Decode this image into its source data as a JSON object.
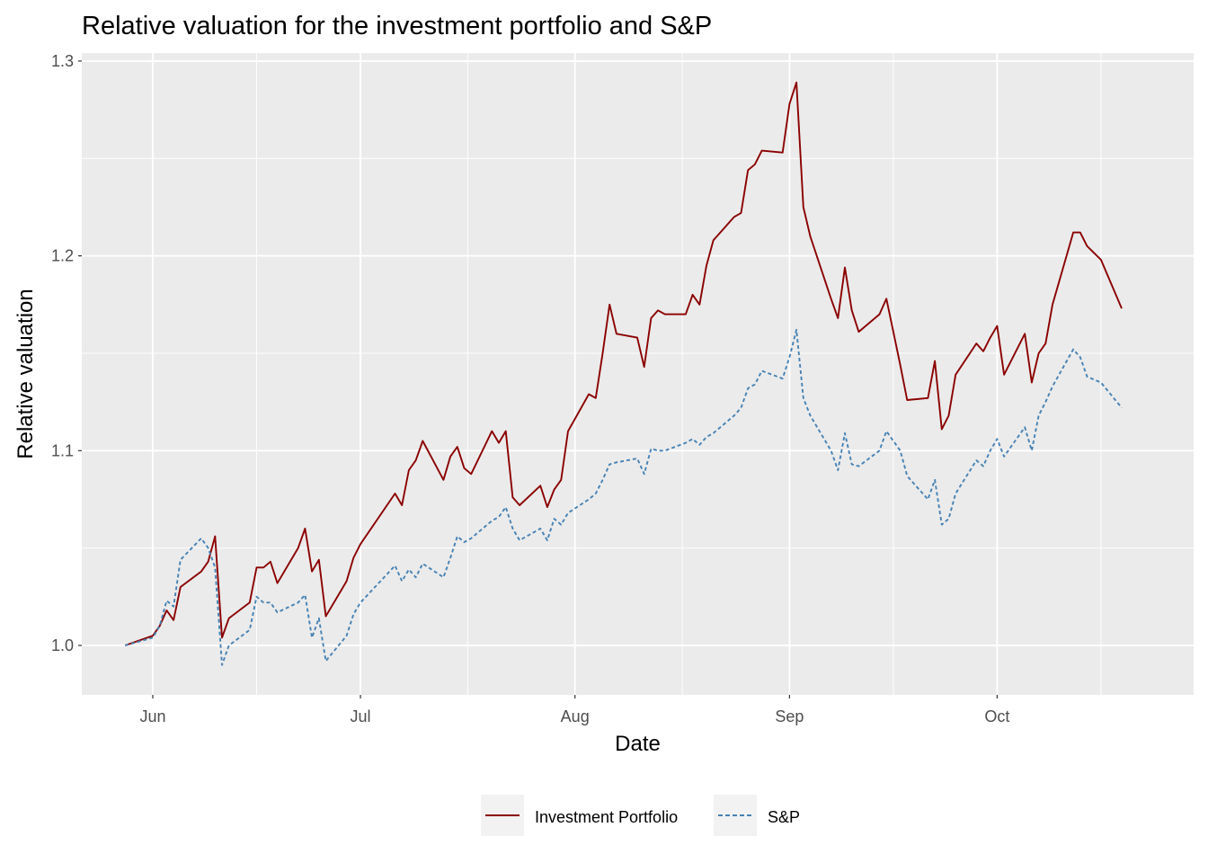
{
  "chart_data": {
    "type": "line",
    "title": "Relative valuation for the investment portfolio and S&P",
    "xlabel": "Date",
    "ylabel": "Relative valuation",
    "x_ticks": [
      {
        "date": "2021-06-01",
        "label": "Jun"
      },
      {
        "date": "2021-07-01",
        "label": "Jul"
      },
      {
        "date": "2021-08-01",
        "label": "Aug"
      },
      {
        "date": "2021-09-01",
        "label": "Sep"
      },
      {
        "date": "2021-10-01",
        "label": "Oct"
      }
    ],
    "y_ticks": [
      1.0,
      1.1,
      1.2,
      1.3
    ],
    "y_tick_labels": [
      "1.0",
      "1.1",
      "1.2",
      "1.3"
    ],
    "xlim": [
      "2021-05-24",
      "2021-10-25"
    ],
    "ylim": [
      0.975,
      1.3
    ],
    "grid": true,
    "background": "#ebebeb",
    "legend_position": "bottom",
    "series": [
      {
        "name": "Investment Portfolio",
        "color": "#8b0000",
        "dash": "solid",
        "points": [
          [
            "2021-05-28",
            1.0
          ],
          [
            "2021-06-01",
            1.005
          ],
          [
            "2021-06-02",
            1.01
          ],
          [
            "2021-06-03",
            1.018
          ],
          [
            "2021-06-04",
            1.013
          ],
          [
            "2021-06-05",
            1.03
          ],
          [
            "2021-06-08",
            1.038
          ],
          [
            "2021-06-09",
            1.043
          ],
          [
            "2021-06-10",
            1.056
          ],
          [
            "2021-06-11",
            1.004
          ],
          [
            "2021-06-12",
            1.014
          ],
          [
            "2021-06-15",
            1.022
          ],
          [
            "2021-06-16",
            1.04
          ],
          [
            "2021-06-17",
            1.04
          ],
          [
            "2021-06-18",
            1.043
          ],
          [
            "2021-06-19",
            1.032
          ],
          [
            "2021-06-22",
            1.05
          ],
          [
            "2021-06-23",
            1.06
          ],
          [
            "2021-06-24",
            1.038
          ],
          [
            "2021-06-25",
            1.044
          ],
          [
            "2021-06-26",
            1.015
          ],
          [
            "2021-06-29",
            1.033
          ],
          [
            "2021-06-30",
            1.045
          ],
          [
            "2021-07-01",
            1.052
          ],
          [
            "2021-07-06",
            1.078
          ],
          [
            "2021-07-07",
            1.072
          ],
          [
            "2021-07-08",
            1.09
          ],
          [
            "2021-07-09",
            1.095
          ],
          [
            "2021-07-10",
            1.105
          ],
          [
            "2021-07-13",
            1.085
          ],
          [
            "2021-07-14",
            1.097
          ],
          [
            "2021-07-15",
            1.102
          ],
          [
            "2021-07-16",
            1.091
          ],
          [
            "2021-07-17",
            1.088
          ],
          [
            "2021-07-20",
            1.11
          ],
          [
            "2021-07-21",
            1.104
          ],
          [
            "2021-07-22",
            1.11
          ],
          [
            "2021-07-23",
            1.076
          ],
          [
            "2021-07-24",
            1.072
          ],
          [
            "2021-07-27",
            1.082
          ],
          [
            "2021-07-28",
            1.071
          ],
          [
            "2021-07-29",
            1.08
          ],
          [
            "2021-07-30",
            1.085
          ],
          [
            "2021-07-31",
            1.11
          ],
          [
            "2021-08-03",
            1.129
          ],
          [
            "2021-08-04",
            1.127
          ],
          [
            "2021-08-05",
            1.15
          ],
          [
            "2021-08-06",
            1.175
          ],
          [
            "2021-08-07",
            1.16
          ],
          [
            "2021-08-10",
            1.158
          ],
          [
            "2021-08-11",
            1.143
          ],
          [
            "2021-08-12",
            1.168
          ],
          [
            "2021-08-13",
            1.172
          ],
          [
            "2021-08-14",
            1.17
          ],
          [
            "2021-08-17",
            1.17
          ],
          [
            "2021-08-18",
            1.18
          ],
          [
            "2021-08-19",
            1.175
          ],
          [
            "2021-08-20",
            1.195
          ],
          [
            "2021-08-21",
            1.208
          ],
          [
            "2021-08-24",
            1.22
          ],
          [
            "2021-08-25",
            1.222
          ],
          [
            "2021-08-26",
            1.244
          ],
          [
            "2021-08-27",
            1.247
          ],
          [
            "2021-08-28",
            1.254
          ],
          [
            "2021-08-31",
            1.253
          ],
          [
            "2021-09-01",
            1.278
          ],
          [
            "2021-09-02",
            1.289
          ],
          [
            "2021-09-03",
            1.225
          ],
          [
            "2021-09-04",
            1.21
          ],
          [
            "2021-09-07",
            1.178
          ],
          [
            "2021-09-08",
            1.168
          ],
          [
            "2021-09-09",
            1.194
          ],
          [
            "2021-09-10",
            1.172
          ],
          [
            "2021-09-11",
            1.161
          ],
          [
            "2021-09-14",
            1.17
          ],
          [
            "2021-09-15",
            1.178
          ],
          [
            "2021-09-16",
            1.161
          ],
          [
            "2021-09-17",
            1.144
          ],
          [
            "2021-09-18",
            1.126
          ],
          [
            "2021-09-21",
            1.127
          ],
          [
            "2021-09-22",
            1.146
          ],
          [
            "2021-09-23",
            1.111
          ],
          [
            "2021-09-24",
            1.118
          ],
          [
            "2021-09-25",
            1.139
          ],
          [
            "2021-09-28",
            1.155
          ],
          [
            "2021-09-29",
            1.151
          ],
          [
            "2021-09-30",
            1.158
          ],
          [
            "2021-10-01",
            1.164
          ],
          [
            "2021-10-02",
            1.139
          ],
          [
            "2021-10-05",
            1.16
          ],
          [
            "2021-10-06",
            1.135
          ],
          [
            "2021-10-07",
            1.15
          ],
          [
            "2021-10-08",
            1.155
          ],
          [
            "2021-10-09",
            1.175
          ],
          [
            "2021-10-12",
            1.212
          ],
          [
            "2021-10-13",
            1.212
          ],
          [
            "2021-10-14",
            1.205
          ],
          [
            "2021-10-16",
            1.198
          ],
          [
            "2021-10-19",
            1.173
          ]
        ]
      },
      {
        "name": "S&P",
        "color": "#4682b4",
        "dash": "dashed",
        "points": [
          [
            "2021-05-28",
            1.0
          ],
          [
            "2021-06-01",
            1.004
          ],
          [
            "2021-06-02",
            1.01
          ],
          [
            "2021-06-03",
            1.023
          ],
          [
            "2021-06-04",
            1.02
          ],
          [
            "2021-06-05",
            1.044
          ],
          [
            "2021-06-08",
            1.055
          ],
          [
            "2021-06-09",
            1.05
          ],
          [
            "2021-06-10",
            1.04
          ],
          [
            "2021-06-11",
            0.99
          ],
          [
            "2021-06-12",
            1.0
          ],
          [
            "2021-06-15",
            1.008
          ],
          [
            "2021-06-16",
            1.025
          ],
          [
            "2021-06-17",
            1.022
          ],
          [
            "2021-06-18",
            1.022
          ],
          [
            "2021-06-19",
            1.017
          ],
          [
            "2021-06-22",
            1.022
          ],
          [
            "2021-06-23",
            1.026
          ],
          [
            "2021-06-24",
            1.004
          ],
          [
            "2021-06-25",
            1.014
          ],
          [
            "2021-06-26",
            0.992
          ],
          [
            "2021-06-29",
            1.005
          ],
          [
            "2021-06-30",
            1.016
          ],
          [
            "2021-07-01",
            1.022
          ],
          [
            "2021-07-06",
            1.041
          ],
          [
            "2021-07-07",
            1.033
          ],
          [
            "2021-07-08",
            1.039
          ],
          [
            "2021-07-09",
            1.035
          ],
          [
            "2021-07-10",
            1.042
          ],
          [
            "2021-07-13",
            1.035
          ],
          [
            "2021-07-14",
            1.045
          ],
          [
            "2021-07-15",
            1.056
          ],
          [
            "2021-07-16",
            1.053
          ],
          [
            "2021-07-17",
            1.055
          ],
          [
            "2021-07-20",
            1.064
          ],
          [
            "2021-07-21",
            1.066
          ],
          [
            "2021-07-22",
            1.071
          ],
          [
            "2021-07-23",
            1.06
          ],
          [
            "2021-07-24",
            1.054
          ],
          [
            "2021-07-27",
            1.06
          ],
          [
            "2021-07-28",
            1.054
          ],
          [
            "2021-07-29",
            1.065
          ],
          [
            "2021-07-30",
            1.062
          ],
          [
            "2021-07-31",
            1.068
          ],
          [
            "2021-08-03",
            1.075
          ],
          [
            "2021-08-04",
            1.078
          ],
          [
            "2021-08-05",
            1.085
          ],
          [
            "2021-08-06",
            1.093
          ],
          [
            "2021-08-07",
            1.094
          ],
          [
            "2021-08-10",
            1.096
          ],
          [
            "2021-08-11",
            1.088
          ],
          [
            "2021-08-12",
            1.101
          ],
          [
            "2021-08-13",
            1.1
          ],
          [
            "2021-08-14",
            1.1
          ],
          [
            "2021-08-17",
            1.104
          ],
          [
            "2021-08-18",
            1.106
          ],
          [
            "2021-08-19",
            1.103
          ],
          [
            "2021-08-20",
            1.107
          ],
          [
            "2021-08-21",
            1.109
          ],
          [
            "2021-08-24",
            1.118
          ],
          [
            "2021-08-25",
            1.122
          ],
          [
            "2021-08-26",
            1.132
          ],
          [
            "2021-08-27",
            1.134
          ],
          [
            "2021-08-28",
            1.141
          ],
          [
            "2021-08-31",
            1.137
          ],
          [
            "2021-09-01",
            1.148
          ],
          [
            "2021-09-02",
            1.162
          ],
          [
            "2021-09-03",
            1.127
          ],
          [
            "2021-09-04",
            1.118
          ],
          [
            "2021-09-07",
            1.1
          ],
          [
            "2021-09-08",
            1.09
          ],
          [
            "2021-09-09",
            1.109
          ],
          [
            "2021-09-10",
            1.093
          ],
          [
            "2021-09-11",
            1.092
          ],
          [
            "2021-09-14",
            1.1
          ],
          [
            "2021-09-15",
            1.11
          ],
          [
            "2021-09-16",
            1.105
          ],
          [
            "2021-09-17",
            1.1
          ],
          [
            "2021-09-18",
            1.087
          ],
          [
            "2021-09-21",
            1.075
          ],
          [
            "2021-09-22",
            1.085
          ],
          [
            "2021-09-23",
            1.062
          ],
          [
            "2021-09-24",
            1.065
          ],
          [
            "2021-09-25",
            1.078
          ],
          [
            "2021-09-28",
            1.095
          ],
          [
            "2021-09-29",
            1.092
          ],
          [
            "2021-09-30",
            1.1
          ],
          [
            "2021-10-01",
            1.106
          ],
          [
            "2021-10-02",
            1.097
          ],
          [
            "2021-10-05",
            1.112
          ],
          [
            "2021-10-06",
            1.1
          ],
          [
            "2021-10-07",
            1.118
          ],
          [
            "2021-10-08",
            1.125
          ],
          [
            "2021-10-09",
            1.133
          ],
          [
            "2021-10-12",
            1.152
          ],
          [
            "2021-10-13",
            1.148
          ],
          [
            "2021-10-14",
            1.138
          ],
          [
            "2021-10-16",
            1.135
          ],
          [
            "2021-10-19",
            1.122
          ]
        ]
      }
    ]
  }
}
